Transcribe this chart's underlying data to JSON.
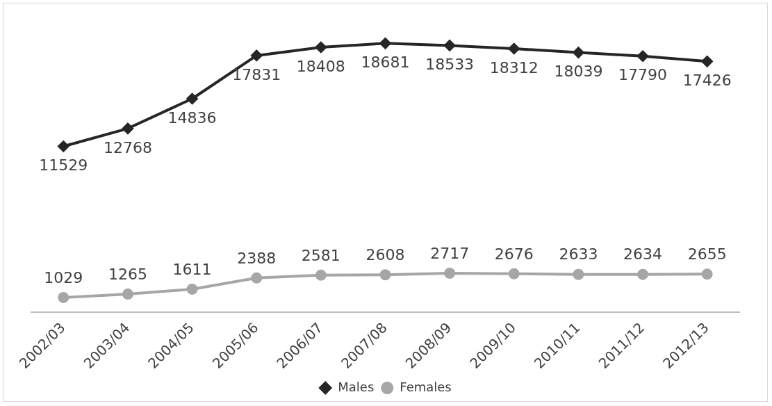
{
  "chart_data": {
    "type": "line",
    "categories": [
      "2002/03",
      "2003/04",
      "2004/05",
      "2005/06",
      "2006/07",
      "2007/08",
      "2008/09",
      "2009/10",
      "2010/11",
      "2011/12",
      "2012/13"
    ],
    "series": [
      {
        "name": "Males",
        "color": "#262626",
        "marker": "diamond",
        "values": [
          11529,
          12768,
          14836,
          17831,
          18408,
          18681,
          18533,
          18312,
          18039,
          17790,
          17426
        ]
      },
      {
        "name": "Females",
        "color": "#a6a6a6",
        "marker": "circle",
        "values": [
          1029,
          1265,
          1611,
          2388,
          2581,
          2608,
          2717,
          2676,
          2633,
          2634,
          2655
        ]
      }
    ],
    "data_labels": true,
    "legend": "bottom",
    "grid": false,
    "tick_labels": "x",
    "line_style": "solid"
  }
}
